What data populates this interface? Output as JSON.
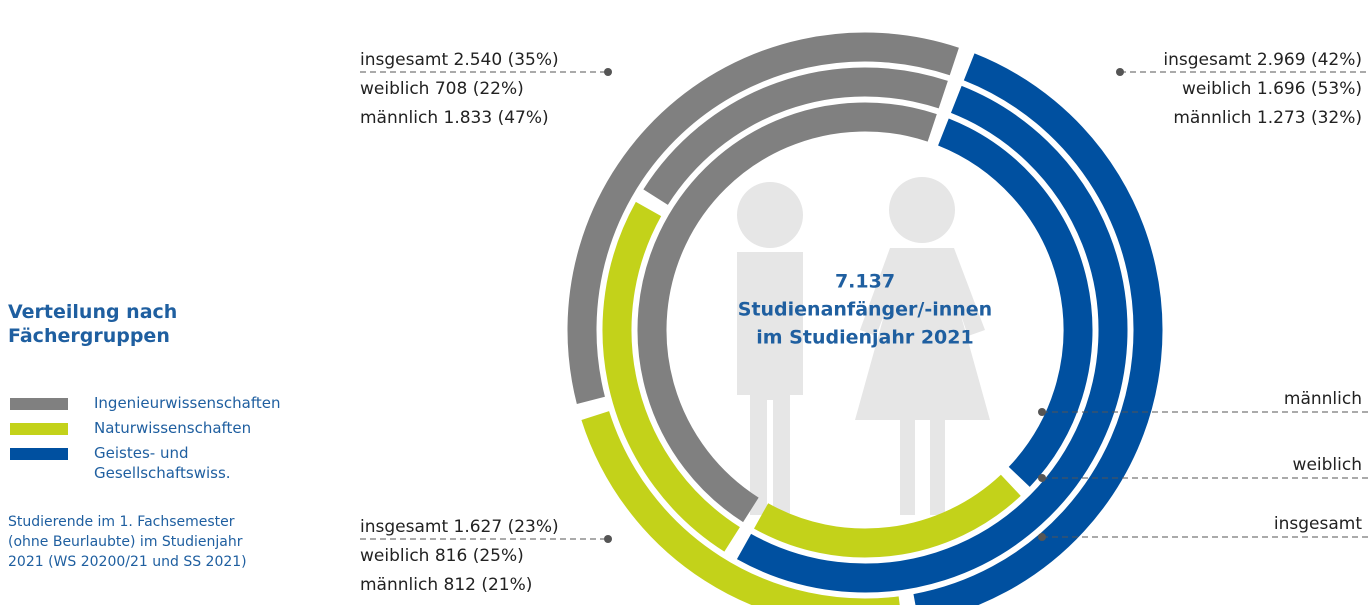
{
  "chart_data": {
    "type": "nested-donut",
    "title": "Verteilung nach Fächergruppen",
    "center_text": [
      "7.137",
      "Studienanfänger/-innen",
      "im Studienjahr 2021"
    ],
    "note": "Studierende im 1. Fachsemester (ohne Beurlaubte) im Studienjahr 2021 (WS 20200/21 und SS 2021)",
    "rings": [
      "insgesamt",
      "weiblich",
      "männlich"
    ],
    "series": [
      {
        "name": "Geistes- und Gesellschaftswiss.",
        "color": "#0050a0",
        "values": [
          42,
          53,
          32
        ],
        "value_labels": [
          "insgesamt 2.969 (42%)",
          "weiblich 1.696 (53%)",
          "männlich 1.273 (32%)"
        ]
      },
      {
        "name": "Naturwissenschaften",
        "color": "#c3d21a",
        "values": [
          23,
          25,
          21
        ],
        "value_labels": [
          "insgesamt 1.627 (23%)",
          "weiblich 816 (25%)",
          "männlich 812 (21%)"
        ]
      },
      {
        "name": "Ingenieurwissenschaften",
        "color": "#808080",
        "values": [
          35,
          22,
          47
        ],
        "value_labels": [
          "insgesamt 2.540 (35%)",
          "weiblich 708 (22%)",
          "männlich 1.833 (47%)"
        ]
      }
    ]
  }
}
